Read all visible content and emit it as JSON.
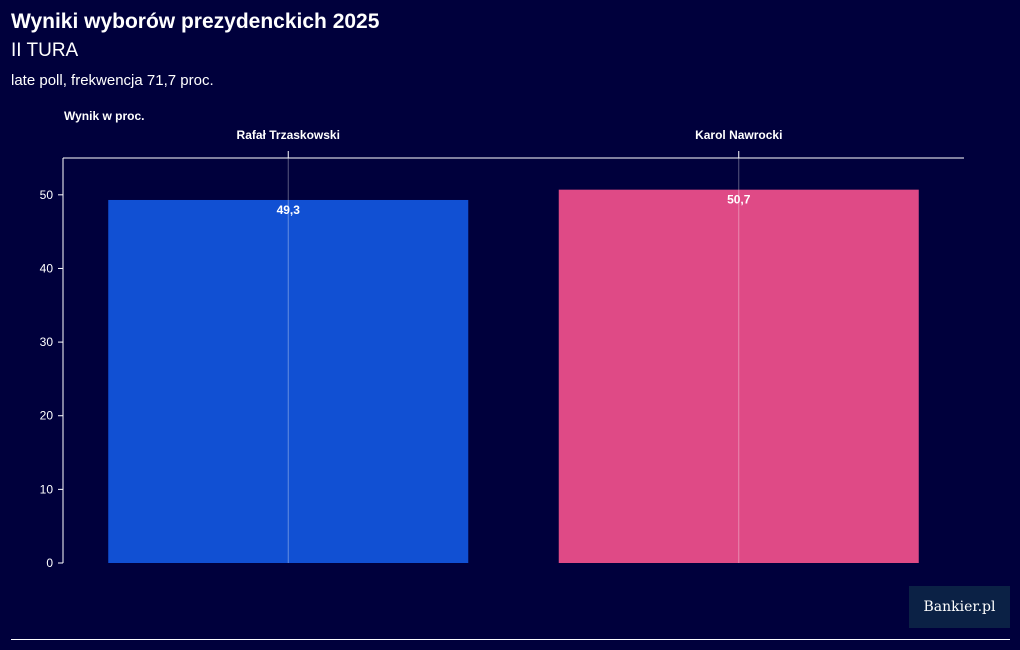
{
  "title": "Wyniki wyborów prezydenckich 2025",
  "subtitle": "II TURA",
  "note": "late poll, frekwencja 71,7 proc.",
  "logo_text": "Bankier.pl",
  "chart_data": {
    "type": "bar",
    "ylabel": "Wynik w proc.",
    "xlabel": "",
    "categories": [
      "Rafał Trzaskowski",
      "Karol Nawrocki"
    ],
    "values": [
      49.3,
      50.7
    ],
    "value_labels": [
      "49,3",
      "50,7"
    ],
    "colors": [
      "#1150d3",
      "#df4a86"
    ],
    "ylim": [
      0,
      55
    ],
    "yticks": [
      0,
      10,
      20,
      30,
      40,
      50
    ],
    "ytick_labels": [
      "0",
      "10",
      "20",
      "30",
      "40",
      "50"
    ],
    "grid": false,
    "legend": "none",
    "category_labels_position": "top"
  }
}
